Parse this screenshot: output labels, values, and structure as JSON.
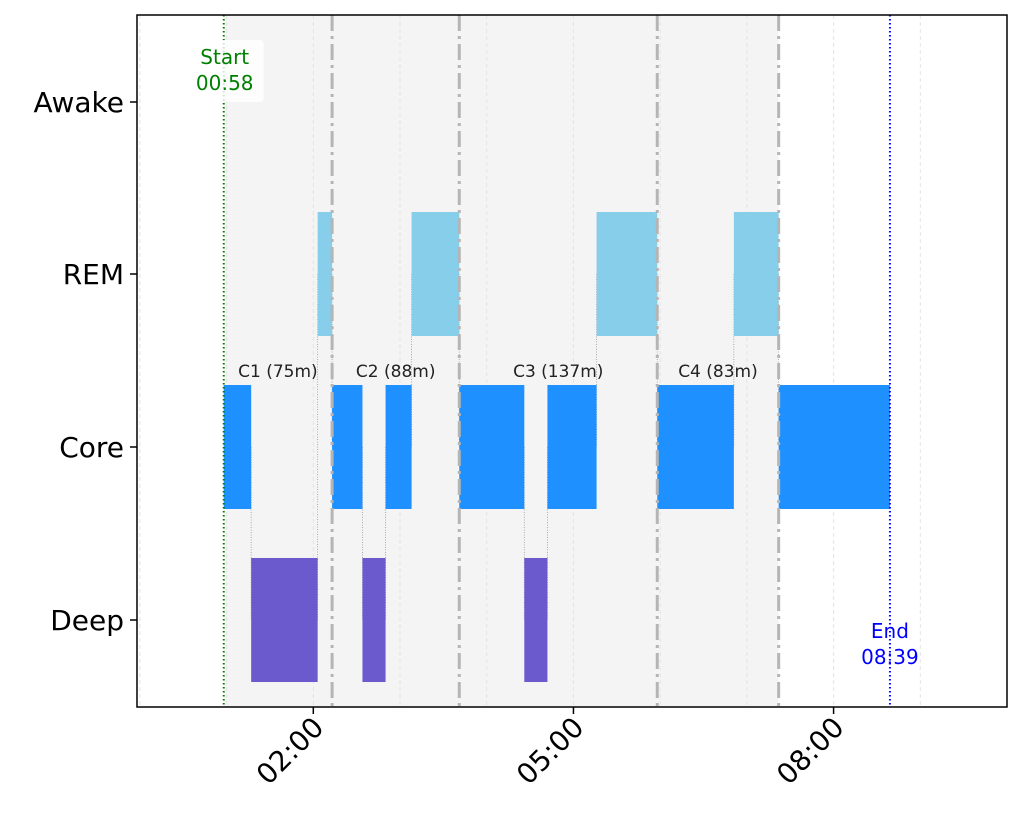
{
  "chart_data": {
    "type": "hypnogram",
    "title": "",
    "xlabel": "",
    "ylabel": "",
    "x_units": "minutes since midnight",
    "xlim": [
      -2,
      600
    ],
    "x_ticks": [
      {
        "value": 120,
        "label": "02:00"
      },
      {
        "value": 300,
        "label": "05:00"
      },
      {
        "value": 480,
        "label": "08:00"
      }
    ],
    "stages": [
      "Awake",
      "REM",
      "Core",
      "Deep"
    ],
    "stage_colors": {
      "REM": "#87CEEB",
      "Core": "#1E90FF",
      "Deep": "#6A5ACD",
      "Awake": "#FFA500"
    },
    "segments": [
      {
        "stage": "Core",
        "start": 58,
        "end": 77
      },
      {
        "stage": "Deep",
        "start": 77,
        "end": 123
      },
      {
        "stage": "REM",
        "start": 123,
        "end": 133
      },
      {
        "stage": "Core",
        "start": 133,
        "end": 154
      },
      {
        "stage": "Deep",
        "start": 154,
        "end": 170
      },
      {
        "stage": "Core",
        "start": 170,
        "end": 188
      },
      {
        "stage": "REM",
        "start": 188,
        "end": 221
      },
      {
        "stage": "Core",
        "start": 221,
        "end": 266
      },
      {
        "stage": "Deep",
        "start": 266,
        "end": 282
      },
      {
        "stage": "Core",
        "start": 282,
        "end": 316
      },
      {
        "stage": "REM",
        "start": 316,
        "end": 358
      },
      {
        "stage": "Core",
        "start": 358,
        "end": 411
      },
      {
        "stage": "REM",
        "start": 411,
        "end": 442
      },
      {
        "stage": "Core",
        "start": 442,
        "end": 519
      }
    ],
    "cycles": [
      {
        "label": "C1 (75m)",
        "start": 58,
        "end": 133
      },
      {
        "label": "C2 (88m)",
        "start": 133,
        "end": 221
      },
      {
        "label": "C3 (137m)",
        "start": 221,
        "end": 358
      },
      {
        "label": "C4 (83m)",
        "start": 358,
        "end": 442
      }
    ],
    "start_marker": {
      "value": 58,
      "label": "Start",
      "time": "00:58",
      "color": "#008000"
    },
    "end_marker": {
      "value": 519,
      "label": "End",
      "time": "08:39",
      "color": "#0000FF"
    },
    "grid": "vertical hourly, faint dashed"
  }
}
